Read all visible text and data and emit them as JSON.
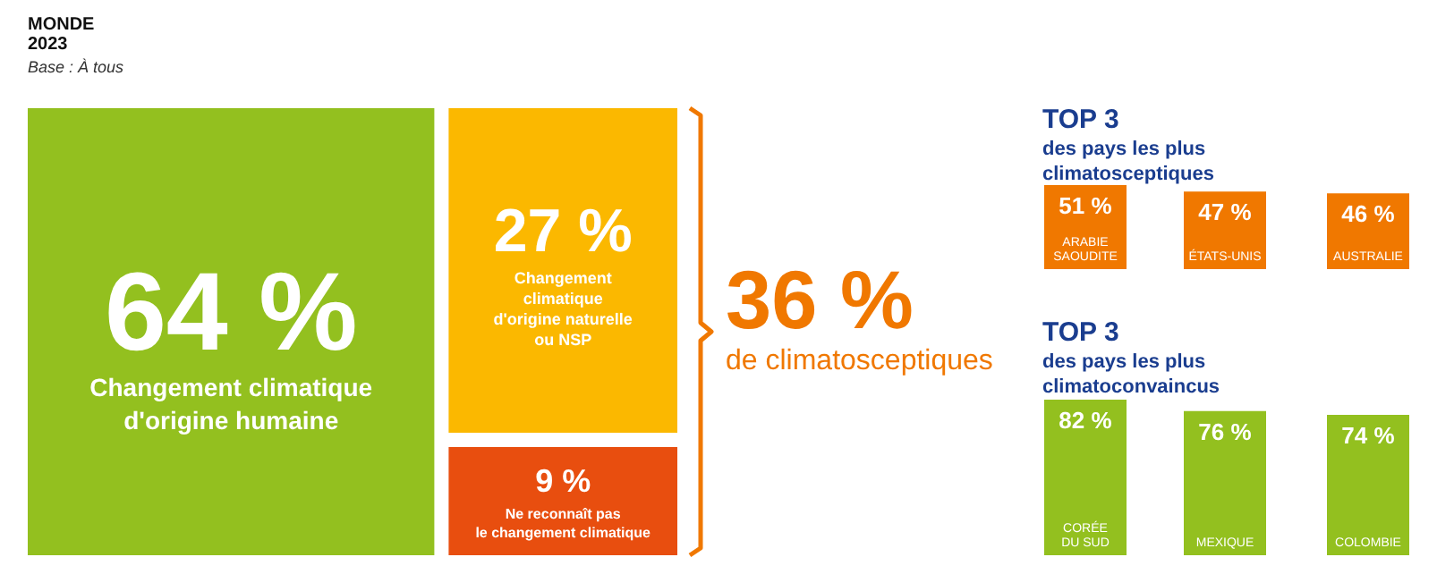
{
  "chart_data": [
    {
      "type": "other",
      "title": "MONDE",
      "subtitle": "2023",
      "annotations": [
        "Base : À tous",
        "36 %",
        "de climatosceptiques"
      ],
      "categories": [
        "Changement climatique\nd'origine humaine",
        "Changement\nclimatique\nd'origine naturelle\nou NSP",
        "Ne reconnaît pas\nle changement climatique"
      ],
      "values": [
        64,
        27,
        9
      ],
      "value_labels": [
        "64 %",
        "27 %",
        "9 %"
      ],
      "colors": [
        "#93c01f",
        "#fbb800",
        "#e84e0f"
      ]
    },
    {
      "type": "bar",
      "title": "TOP 3",
      "subtitle": "des pays les plus\nclimatosceptiques",
      "categories": [
        "ARABIE\nSAOUDITE",
        "ÉTATS-UNIS",
        "AUSTRALIE"
      ],
      "values": [
        51,
        47,
        46
      ],
      "value_labels": [
        "51 %",
        "47 %",
        "46 %"
      ],
      "color": "#f07800"
    },
    {
      "type": "bar",
      "title": "TOP 3",
      "subtitle": "des pays les plus\nclimatoconvaincus",
      "categories": [
        "CORÉE\nDU SUD",
        "MEXIQUE",
        "COLOMBIE"
      ],
      "values": [
        82,
        76,
        74
      ],
      "value_labels": [
        "82 %",
        "76 %",
        "74 %"
      ],
      "color": "#93c01f"
    }
  ]
}
